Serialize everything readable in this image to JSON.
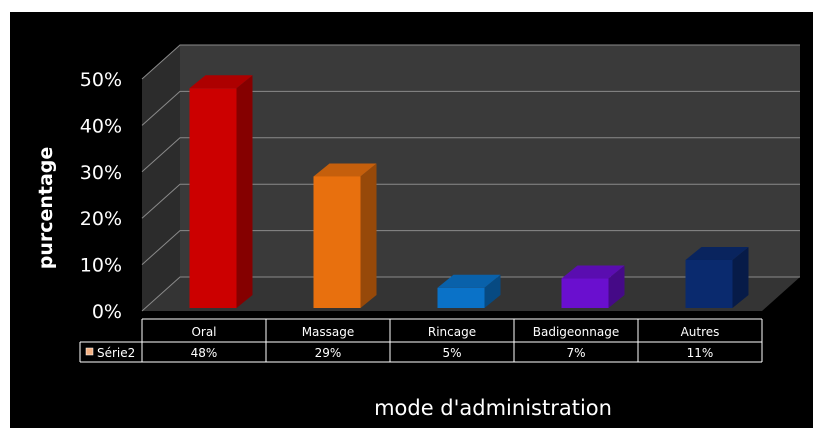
{
  "chart_data": {
    "type": "bar",
    "three_d": true,
    "categories": [
      "Oral",
      "Massage",
      "Rincage",
      "Badigeonnage",
      "Autres"
    ],
    "series": [
      {
        "name": "Série2",
        "values": [
          48,
          29,
          5,
          7,
          11
        ],
        "labels": [
          "48%",
          "29%",
          "5%",
          "7%",
          "11%"
        ]
      }
    ],
    "ylim": [
      0,
      50
    ],
    "yticks": [
      0,
      10,
      20,
      30,
      40,
      50
    ],
    "ytick_labels": [
      "0%",
      "10%",
      "20%",
      "30%",
      "40%",
      "50%"
    ],
    "ylabel": "purcentage",
    "xlabel": "mode d'administration",
    "grid": true,
    "legend": "data-table-left",
    "bar_colors": [
      "#cc0000",
      "#e8700e",
      "#0a72c8",
      "#6a0fcf",
      "#0a2a6e"
    ],
    "background": "#000000",
    "wall_color": "#3a3a3a",
    "legend_key_color": "#f4b183"
  }
}
